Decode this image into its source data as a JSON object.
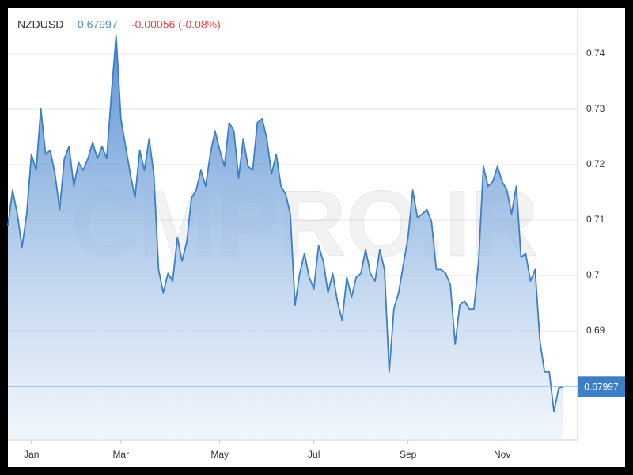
{
  "chart_data": {
    "type": "area",
    "symbol": "NZDUSD",
    "change": "-0.00056 (-0.08%)",
    "watermark": "CMPRO.IR",
    "color": "#3d7fc4",
    "grid": true,
    "categories": [
      null,
      null,
      null,
      null,
      null,
      "Jan",
      null,
      null,
      null,
      null,
      null,
      null,
      null,
      null,
      null,
      null,
      null,
      null,
      null,
      null,
      null,
      null,
      null,
      null,
      "Mar",
      null,
      null,
      null,
      null,
      null,
      null,
      null,
      null,
      null,
      null,
      null,
      null,
      null,
      null,
      null,
      null,
      null,
      null,
      null,
      null,
      "May",
      null,
      null,
      null,
      null,
      null,
      null,
      null,
      null,
      null,
      null,
      null,
      null,
      null,
      null,
      null,
      null,
      null,
      null,
      null,
      "Jul",
      null,
      null,
      null,
      null,
      null,
      null,
      null,
      null,
      null,
      null,
      null,
      null,
      null,
      null,
      null,
      null,
      null,
      null,
      null,
      "Sep",
      null,
      null,
      null,
      null,
      null,
      null,
      null,
      null,
      null,
      null,
      null,
      null,
      null,
      null,
      null,
      null,
      null,
      null,
      null,
      "Nov",
      null,
      null,
      null,
      null,
      null,
      null,
      null,
      null,
      null,
      null,
      null,
      null,
      null
    ],
    "values": [
      0.709,
      0.7154,
      0.7111,
      0.7051,
      0.7111,
      0.7219,
      0.719,
      0.7301,
      0.7219,
      0.7226,
      0.7183,
      0.7119,
      0.7211,
      0.7233,
      0.7161,
      0.7204,
      0.719,
      0.7211,
      0.724,
      0.7211,
      0.7233,
      0.7211,
      0.7329,
      0.7433,
      0.7283,
      0.7233,
      0.7183,
      0.714,
      0.7226,
      0.719,
      0.7247,
      0.7183,
      0.7011,
      0.6969,
      0.7004,
      0.699,
      0.7069,
      0.7026,
      0.7061,
      0.714,
      0.7154,
      0.719,
      0.7161,
      0.7219,
      0.7261,
      0.7226,
      0.7197,
      0.7276,
      0.7261,
      0.7176,
      0.7247,
      0.7197,
      0.719,
      0.7276,
      0.7283,
      0.7247,
      0.7183,
      0.7219,
      0.7161,
      0.7147,
      0.7111,
      0.6947,
      0.7004,
      0.704,
      0.6997,
      0.6976,
      0.7054,
      0.7026,
      0.6969,
      0.7004,
      0.6954,
      0.6919,
      0.6997,
      0.6961,
      0.6997,
      0.7004,
      0.7047,
      0.7004,
      0.699,
      0.7047,
      0.7011,
      0.6826,
      0.694,
      0.6969,
      0.7019,
      0.7069,
      0.7154,
      0.7104,
      0.7111,
      0.7119,
      0.7097,
      0.7011,
      0.7011,
      0.7004,
      0.6983,
      0.6876,
      0.6947,
      0.6954,
      0.694,
      0.694,
      0.7026,
      0.7197,
      0.7161,
      0.7169,
      0.7197,
      0.7169,
      0.7154,
      0.7111,
      0.7161,
      0.7033,
      0.704,
      0.699,
      0.7011,
      0.6883,
      0.6826,
      0.6826,
      0.6754,
      0.6797,
      0.67997
    ],
    "ylim": [
      0.6703,
      0.748
    ],
    "yticks": [
      0.69,
      0.7,
      0.71,
      0.72,
      0.73,
      0.74
    ]
  }
}
